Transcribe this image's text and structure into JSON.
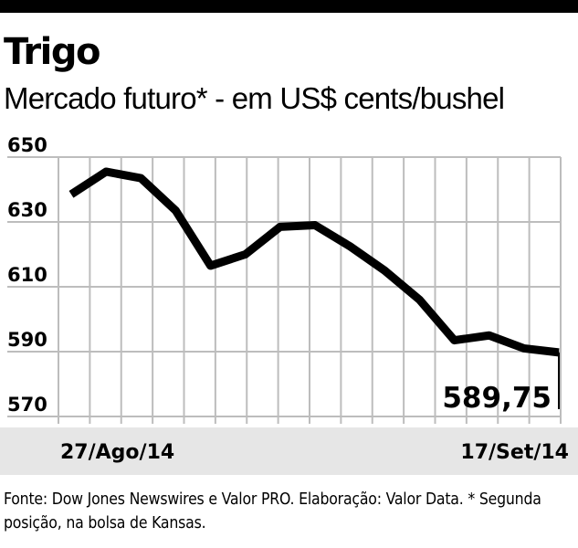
{
  "chart_data": {
    "type": "line",
    "title": "Trigo",
    "subtitle": "Mercado futuro* - em US$ cents/bushel",
    "x_start_label": "27/Ago/14",
    "x_end_label": "17/Set/14",
    "values": [
      638.5,
      645.5,
      643.5,
      633.5,
      616.5,
      620,
      628.5,
      629,
      622.5,
      615,
      606,
      593.5,
      595,
      591,
      589.75
    ],
    "ylim": [
      570,
      650
    ],
    "yticks": [
      650,
      630,
      610,
      590,
      570
    ],
    "last_value_label": "589,75",
    "grid": true,
    "colors": {
      "line": "#000000",
      "grid": "#bdbdbd",
      "axis_band": "#e6e6e6",
      "rule": "#000000"
    }
  },
  "source_note": "Fonte: Dow Jones Newswires e Valor PRO. Elaboração: Valor Data. * Segunda posição, na bolsa de Kansas."
}
